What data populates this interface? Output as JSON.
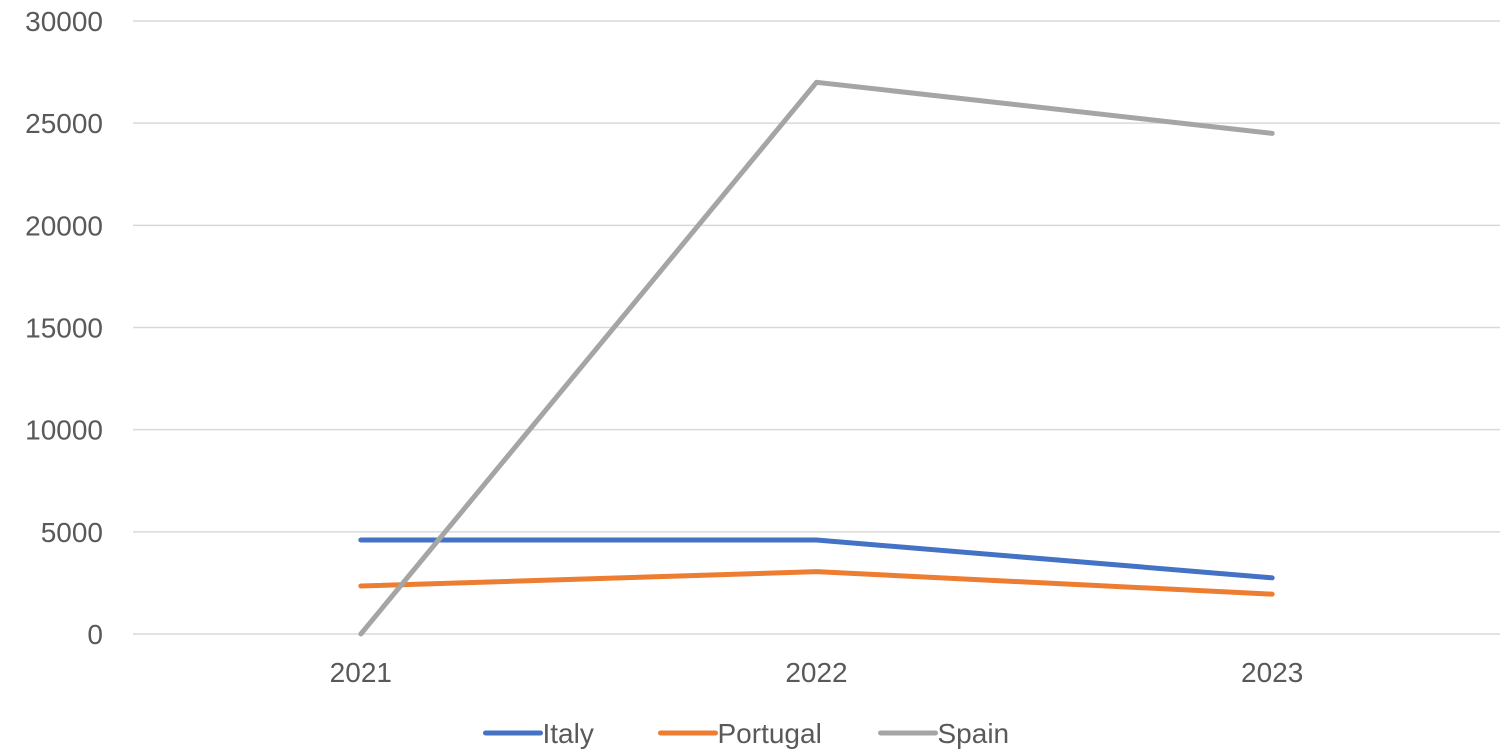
{
  "chart_data": {
    "type": "line",
    "title": "",
    "xlabel": "",
    "ylabel": "",
    "categories": [
      "2021",
      "2022",
      "2023"
    ],
    "ylim": [
      0,
      30000
    ],
    "yticks": [
      "0",
      "5000",
      "10000",
      "15000",
      "20000",
      "25000",
      "30000"
    ],
    "grid": true,
    "legend_position": "bottom",
    "series": [
      {
        "name": "Italy",
        "color": "#4472c4",
        "values": [
          4600,
          4600,
          2750
        ]
      },
      {
        "name": "Portugal",
        "color": "#ed7d31",
        "values": [
          2350,
          3050,
          1950
        ]
      },
      {
        "name": "Spain",
        "color": "#a5a5a5",
        "values": [
          0,
          27000,
          24500
        ]
      }
    ]
  }
}
